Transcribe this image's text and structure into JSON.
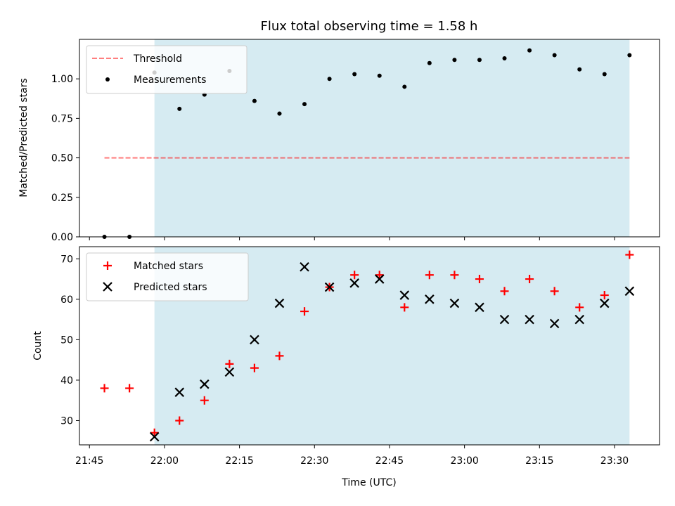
{
  "chart_data": {
    "type": "scatter",
    "title": "Flux total observing time = 1.58 h",
    "xlabel": "Time (UTC)",
    "x_tick_labels": [
      "21:45",
      "22:00",
      "22:15",
      "22:30",
      "22:45",
      "23:00",
      "23:15",
      "23:30"
    ],
    "xlim": [
      "21:43",
      "23:39"
    ],
    "observing_window": [
      "21:58",
      "23:33"
    ],
    "observing_window_color": "#add8e6",
    "panels": [
      {
        "ylabel": "Matched/Predicted stars",
        "ylim": [
          0.0,
          1.25
        ],
        "y_tick_labels": [
          "0.00",
          "0.25",
          "0.50",
          "0.75",
          "1.00"
        ],
        "threshold": {
          "name": "Threshold",
          "value": 0.5,
          "color": "#ff0000",
          "x_range": [
            "21:48",
            "23:33"
          ]
        },
        "series": [
          {
            "name": "Measurements",
            "color": "#000000",
            "marker": "dot",
            "x": [
              "21:48",
              "21:53",
              "21:58",
              "22:03",
              "22:08",
              "22:13",
              "22:18",
              "22:23",
              "22:28",
              "22:33",
              "22:38",
              "22:43",
              "22:48",
              "22:53",
              "22:58",
              "23:03",
              "23:08",
              "23:13",
              "23:18",
              "23:23",
              "23:28",
              "23:33"
            ],
            "y": [
              0.0,
              0.0,
              1.04,
              0.81,
              0.9,
              1.05,
              0.86,
              0.78,
              0.84,
              1.0,
              1.03,
              1.02,
              0.95,
              1.1,
              1.12,
              1.12,
              1.13,
              1.18,
              1.15,
              1.06,
              1.03,
              1.15
            ]
          }
        ],
        "legend": [
          "Threshold",
          "Measurements"
        ]
      },
      {
        "ylabel": "Count",
        "ylim": [
          24,
          73
        ],
        "y_tick_labels": [
          "30",
          "40",
          "50",
          "60",
          "70"
        ],
        "series": [
          {
            "name": "Matched stars",
            "color": "#ff0000",
            "marker": "plus",
            "x": [
              "21:48",
              "21:53",
              "21:58",
              "22:03",
              "22:08",
              "22:13",
              "22:18",
              "22:23",
              "22:28",
              "22:33",
              "22:38",
              "22:43",
              "22:48",
              "22:53",
              "22:58",
              "23:03",
              "23:08",
              "23:13",
              "23:18",
              "23:23",
              "23:28",
              "23:33"
            ],
            "y": [
              38,
              38,
              27,
              30,
              35,
              44,
              43,
              46,
              57,
              63,
              66,
              66,
              58,
              66,
              66,
              65,
              62,
              65,
              62,
              58,
              61,
              71
            ]
          },
          {
            "name": "Predicted stars",
            "color": "#000000",
            "marker": "x",
            "x": [
              "21:58",
              "22:03",
              "22:08",
              "22:13",
              "22:18",
              "22:23",
              "22:28",
              "22:33",
              "22:38",
              "22:43",
              "22:48",
              "22:53",
              "22:58",
              "23:03",
              "23:08",
              "23:13",
              "23:18",
              "23:23",
              "23:28",
              "23:33"
            ],
            "y": [
              26,
              37,
              39,
              42,
              50,
              59,
              68,
              63,
              64,
              65,
              61,
              60,
              59,
              58,
              55,
              55,
              54,
              55,
              59,
              62
            ]
          }
        ],
        "legend": [
          "Matched stars",
          "Predicted stars"
        ]
      }
    ]
  }
}
